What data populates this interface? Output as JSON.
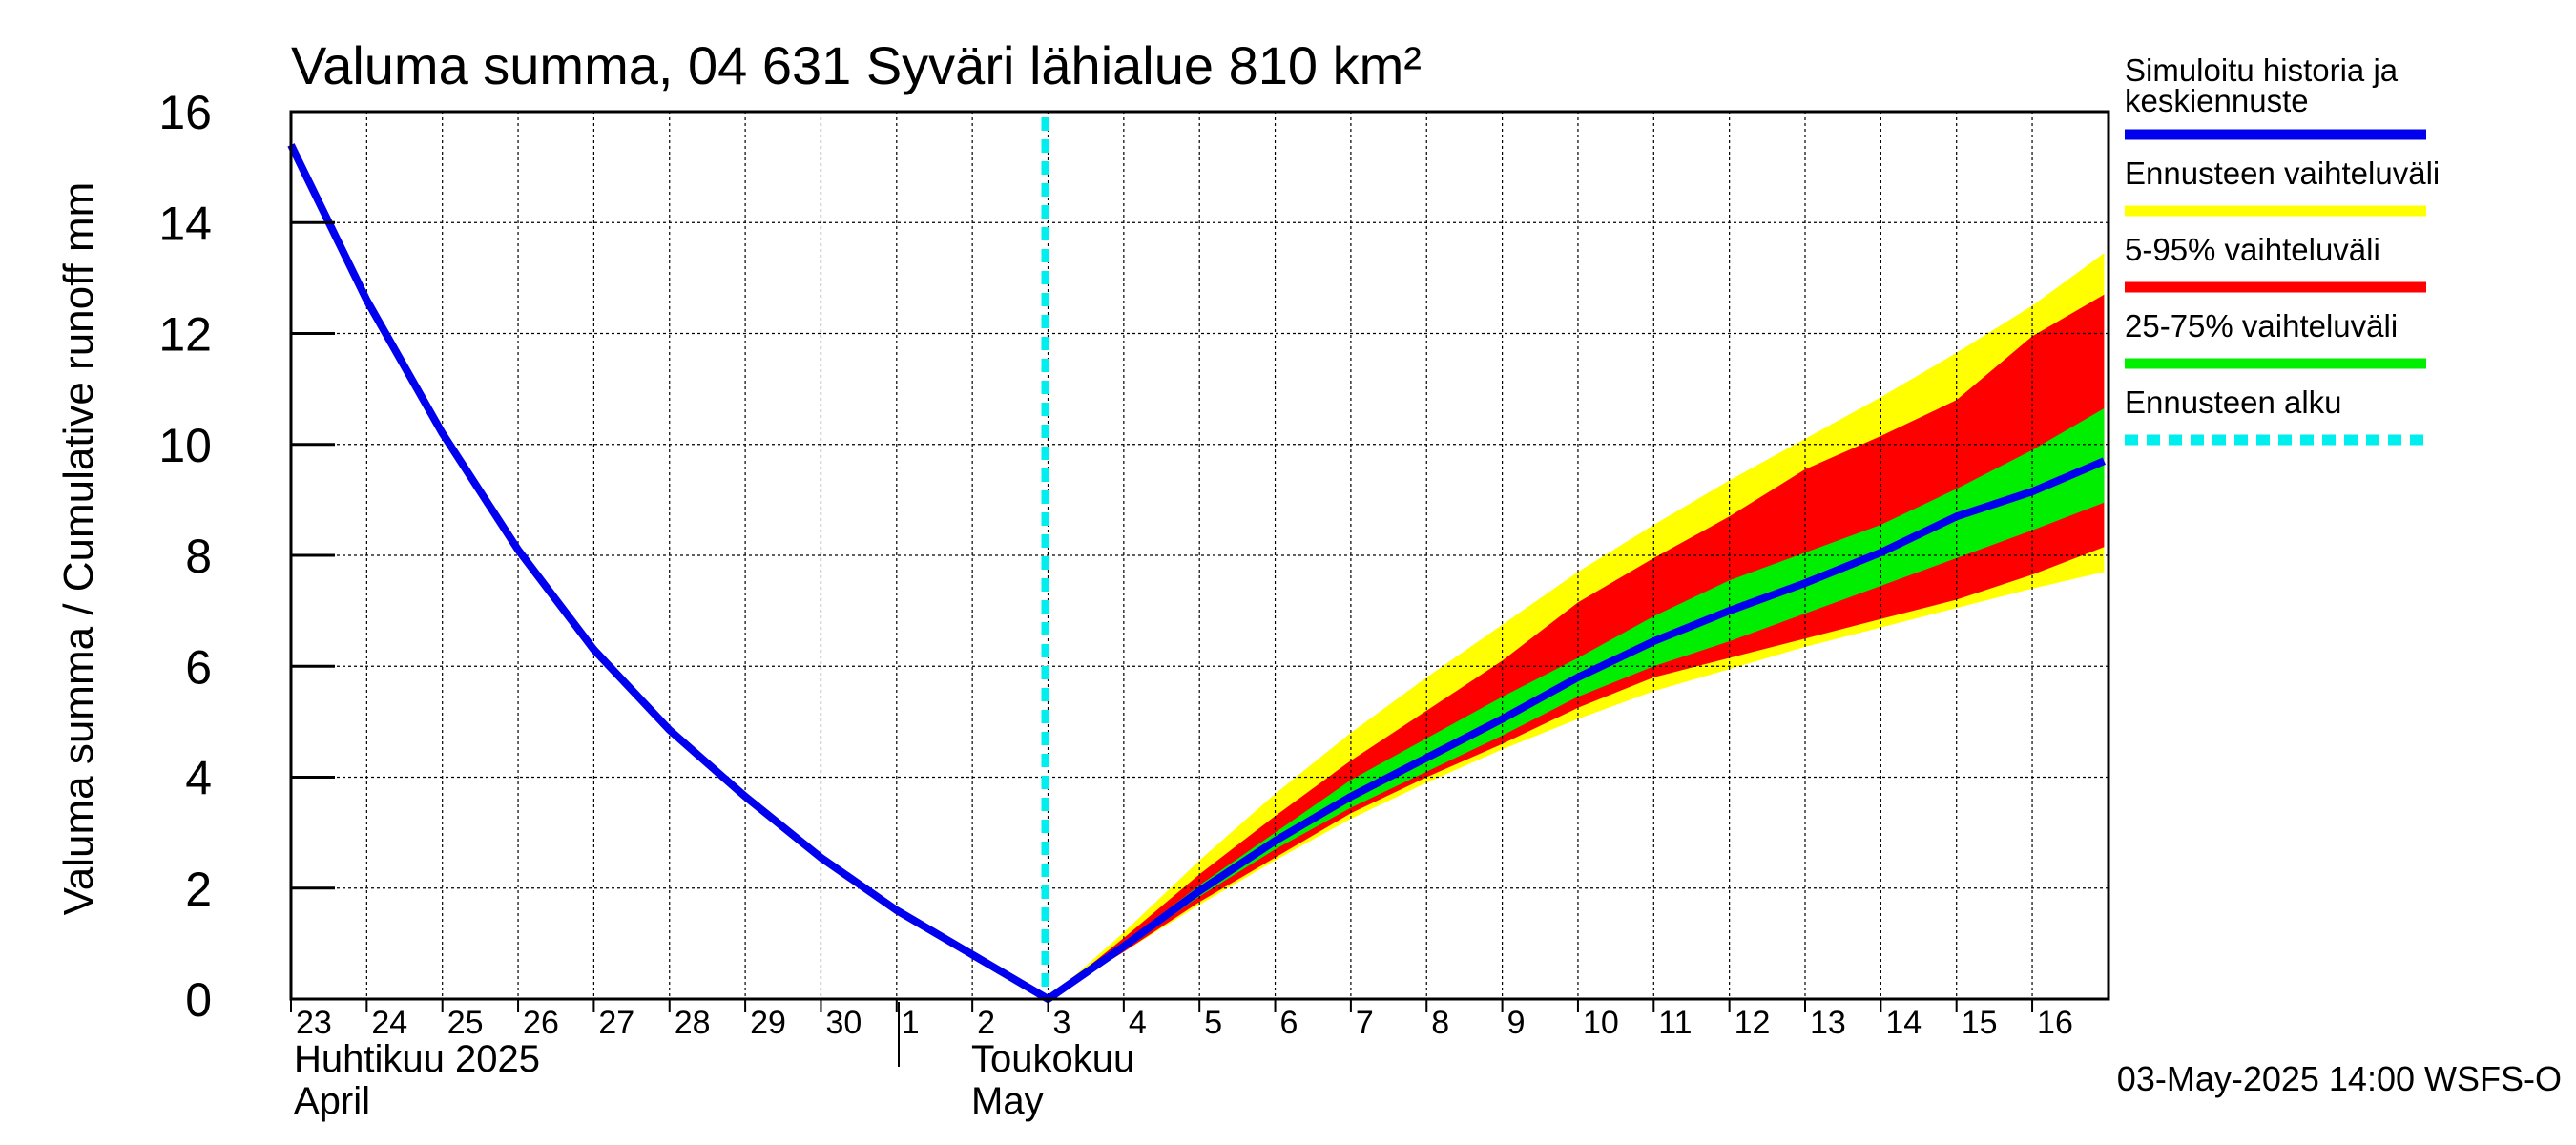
{
  "chart_data": {
    "type": "area",
    "title": "Valuma summa, 04 631 Syväri lähialue 810 km²",
    "ylabel": "Valuma summa / Cumulative runoff    mm",
    "ylim": [
      0,
      16
    ],
    "yticks": [
      0,
      2,
      4,
      6,
      8,
      10,
      12,
      14,
      16
    ],
    "x_day_labels": [
      "23",
      "24",
      "25",
      "26",
      "27",
      "28",
      "29",
      "30",
      "1",
      "2",
      "3",
      "4",
      "5",
      "6",
      "7",
      "8",
      "9",
      "10",
      "11",
      "12",
      "13",
      "14",
      "15",
      "16"
    ],
    "month_labels": {
      "april_fi": "Huhtikuu  2025",
      "april_en": "April",
      "may_fi": "Toukokuu",
      "may_en": "May"
    },
    "forecast_start_day_index": 10.0,
    "series": [
      {
        "name": "Simuloitu historia ja keskiennuste",
        "color": "#0000ee",
        "x": [
          0,
          1,
          2,
          3,
          4,
          5,
          6,
          7,
          8,
          9,
          10,
          11,
          12,
          13,
          14,
          15,
          16,
          17,
          18,
          19,
          20,
          21,
          22,
          23,
          23.95
        ],
        "values": [
          15.4,
          12.6,
          10.2,
          8.1,
          6.3,
          4.85,
          3.65,
          2.55,
          1.6,
          0.8,
          0.0,
          0.95,
          1.95,
          2.85,
          3.65,
          4.35,
          5.05,
          5.8,
          6.45,
          7.0,
          7.5,
          8.05,
          8.7,
          9.15,
          9.7
        ]
      }
    ],
    "bands": [
      {
        "name": "Ennusteen vaihteluväli",
        "color": "#ffff00",
        "x": [
          10,
          11,
          12,
          13,
          14,
          15,
          16,
          17,
          18,
          19,
          20,
          21,
          22,
          23,
          23.95
        ],
        "upper": [
          0.0,
          1.2,
          2.5,
          3.7,
          4.8,
          5.8,
          6.75,
          7.7,
          8.55,
          9.35,
          10.1,
          10.85,
          11.65,
          12.5,
          13.45
        ],
        "lower": [
          0.0,
          0.85,
          1.7,
          2.5,
          3.25,
          3.9,
          4.5,
          5.05,
          5.55,
          5.95,
          6.35,
          6.7,
          7.05,
          7.4,
          7.7
        ]
      },
      {
        "name": "5-95% vaihteluväli",
        "color": "#ff0000",
        "x": [
          10,
          11,
          12,
          13,
          14,
          15,
          16,
          17,
          18,
          19,
          20,
          21,
          22,
          23,
          23.95
        ],
        "upper": [
          0.0,
          1.1,
          2.25,
          3.3,
          4.3,
          5.2,
          6.1,
          7.15,
          7.95,
          8.7,
          9.55,
          10.15,
          10.8,
          11.95,
          12.7
        ],
        "lower": [
          0.0,
          0.85,
          1.75,
          2.55,
          3.35,
          4.0,
          4.6,
          5.25,
          5.8,
          6.15,
          6.5,
          6.85,
          7.2,
          7.65,
          8.15
        ]
      },
      {
        "name": "25-75% vaihteluväli",
        "color": "#00ee00",
        "x": [
          10,
          11,
          12,
          13,
          14,
          15,
          16,
          17,
          18,
          19,
          20,
          21,
          22,
          23,
          23.95
        ],
        "upper": [
          0.0,
          1.0,
          2.05,
          3.0,
          3.95,
          4.7,
          5.45,
          6.15,
          6.9,
          7.55,
          8.05,
          8.55,
          9.2,
          9.9,
          10.65
        ],
        "lower": [
          0.0,
          0.9,
          1.85,
          2.7,
          3.45,
          4.1,
          4.75,
          5.45,
          6.0,
          6.45,
          6.95,
          7.45,
          7.95,
          8.45,
          8.95
        ]
      }
    ],
    "legend": {
      "placement": "right",
      "items": [
        {
          "label_line1": "Simuloitu historia ja",
          "label_line2": "keskiennuste",
          "color": "#0000ee",
          "style": "solid"
        },
        {
          "label_line1": "Ennusteen vaihteluväli",
          "label_line2": "",
          "color": "#ffff00",
          "style": "solid"
        },
        {
          "label_line1": "5-95% vaihteluväli",
          "label_line2": "",
          "color": "#ff0000",
          "style": "solid"
        },
        {
          "label_line1": "25-75% vaihteluväli",
          "label_line2": "",
          "color": "#00ee00",
          "style": "solid"
        },
        {
          "label_line1": "Ennusteen alku",
          "label_line2": "",
          "color": "#00eeee",
          "style": "dashed"
        }
      ]
    },
    "grid": true,
    "footer": "03-May-2025 14:00 WSFS-O"
  }
}
